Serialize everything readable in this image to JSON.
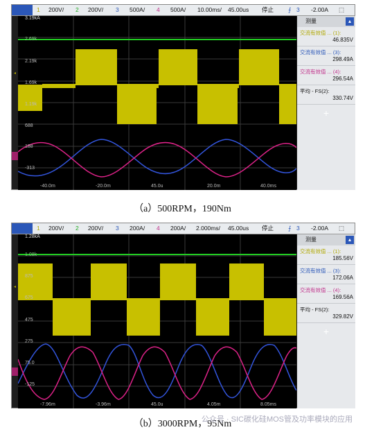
{
  "scopes": [
    {
      "header": {
        "ch1": "1",
        "s1": "200V/",
        "ch2": "2",
        "s2": "200V/",
        "ch3": "3",
        "s3": "500A/",
        "ch4": "4",
        "s4": "500A/",
        "tdiv": "10.00ms/",
        "tpos": "45.00us",
        "state": "停止",
        "trig_ch": "3",
        "trig_level": "-2.00A"
      },
      "y_labels": [
        "3.19kA",
        "2.69k",
        "2.19k",
        "1.69k",
        "1.19k",
        "688",
        "188",
        "-313"
      ],
      "x_labels": [
        "-40.0m",
        "-20.0m",
        "45.0u",
        "20.0m",
        "40.0ms"
      ],
      "side_title": "测量",
      "measurements": [
        {
          "label": "交流有效值 ... (1):",
          "value": "46.835V"
        },
        {
          "label": "交流有效值 ... (3):",
          "value": "298.49A"
        },
        {
          "label": "交流有效值 ... (4):",
          "value": "296.54A"
        },
        {
          "label": "平均 - FS(2):",
          "value": "330.74V"
        }
      ],
      "caption": "（a）500RPM，190Nm"
    },
    {
      "header": {
        "ch1": "1",
        "s1": "200V/",
        "ch2": "2",
        "s2": "200V/",
        "ch3": "3",
        "s3": "200A/",
        "ch4": "4",
        "s4": "200A/",
        "tdiv": "2.000ms/",
        "tpos": "45.00us",
        "state": "停止",
        "trig_ch": "3",
        "trig_level": "-2.00A"
      },
      "y_labels": [
        "1.28kA",
        "1.08k",
        "875",
        "675",
        "475",
        "275",
        "75.0",
        "-125"
      ],
      "x_labels": [
        "-7.96m",
        "-3.96m",
        "45.0u",
        "4.05m",
        "8.05ms"
      ],
      "side_title": "测量",
      "measurements": [
        {
          "label": "交流有效值 ... (1):",
          "value": "185.56V"
        },
        {
          "label": "交流有效值 ... (3):",
          "value": "172.06A"
        },
        {
          "label": "交流有效值 ... (4):",
          "value": "169.56A"
        },
        {
          "label": "平均 - FS(2):",
          "value": "329.82V"
        }
      ],
      "caption": "（b）3000RPM，95Nm"
    }
  ],
  "watermark": "公众号 · SIC碳化硅MOS管及功率模块的应用",
  "colors": {
    "ch1": "#c8c000",
    "ch2": "#22cc22",
    "ch3": "#3355dd",
    "ch4": "#dd2288"
  }
}
